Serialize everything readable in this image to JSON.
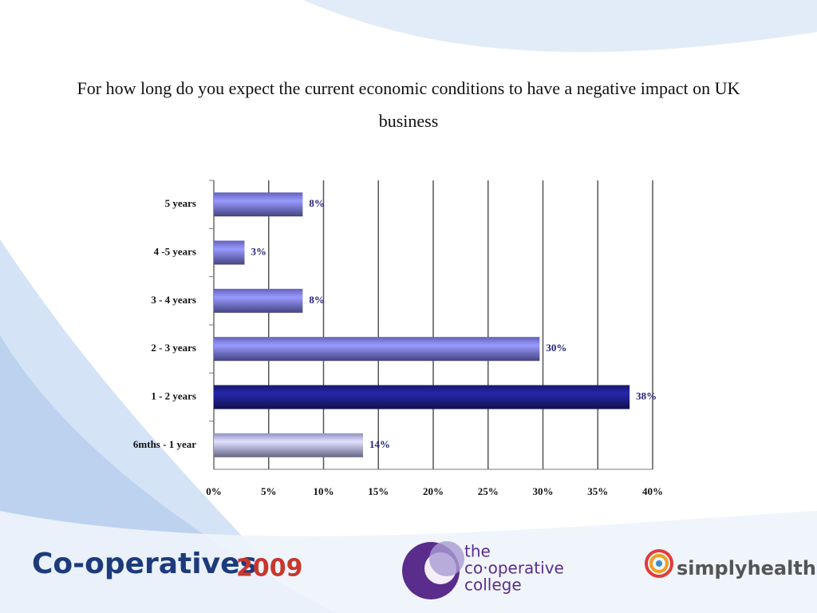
{
  "chart_data": {
    "type": "hbar",
    "title": "For how long do you expect the current economic conditions to have a negative impact on UK business",
    "categories": [
      "5 years",
      "4 -5 years",
      "3 - 4 years",
      "2 - 3 years",
      "1 - 2 years",
      "6mths - 1 year"
    ],
    "values": [
      8.1,
      2.8,
      8.1,
      29.7,
      37.9,
      13.6
    ],
    "value_labels": [
      "8%",
      "3%",
      "8%",
      "30%",
      "38%",
      "14%"
    ],
    "colors": [
      "#7b7bea",
      "#7b7bea",
      "#7b7bea",
      "#7b7bea",
      "#1e1e8a",
      "#b4b4f2"
    ],
    "xlim": [
      0,
      40
    ],
    "xticks": [
      {
        "value": 0,
        "label": "0%"
      },
      {
        "value": 5,
        "label": "5%"
      },
      {
        "value": 10,
        "label": "10%"
      },
      {
        "value": 15,
        "label": "15%"
      },
      {
        "value": 20,
        "label": "20%"
      },
      {
        "value": 25,
        "label": "25%"
      },
      {
        "value": 30,
        "label": "30%"
      },
      {
        "value": 35,
        "label": "35%"
      },
      {
        "value": 40,
        "label": "40%"
      }
    ],
    "grid": true
  },
  "logos": {
    "cooperatives": "Co-operatives",
    "year": "2009",
    "college": [
      "the",
      "co·operative",
      "college"
    ],
    "sponsor": "simplyhealth"
  }
}
